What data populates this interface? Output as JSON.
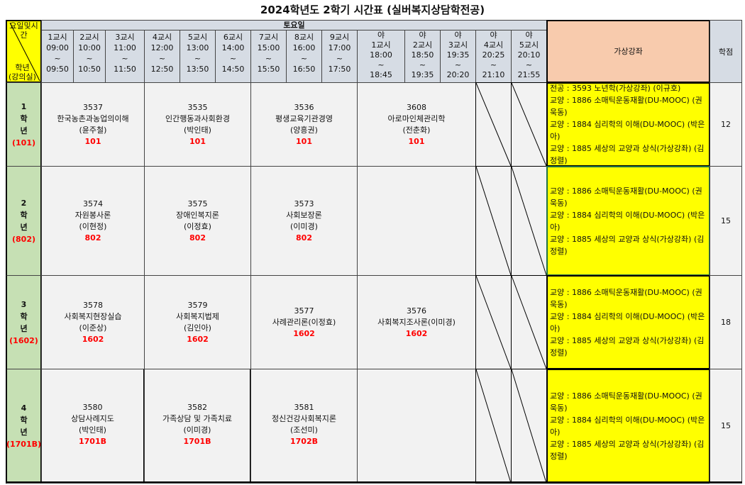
{
  "title": "2024학년도 2학기 시간표 (실버복지상담학전공)",
  "corner": {
    "top": "요일및시간",
    "bottom1": "학년",
    "bottom2": "(강의실)"
  },
  "day": "토요일",
  "periods": [
    {
      "name": "1교시",
      "start": "09:00",
      "end": "09:50"
    },
    {
      "name": "2교시",
      "start": "10:00",
      "end": "10:50"
    },
    {
      "name": "3교시",
      "start": "11:00",
      "end": "11:50"
    },
    {
      "name": "4교시",
      "start": "12:00",
      "end": "12:50"
    },
    {
      "name": "5교시",
      "start": "13:00",
      "end": "13:50"
    },
    {
      "name": "6교시",
      "start": "14:00",
      "end": "14:50"
    },
    {
      "name": "7교시",
      "start": "15:00",
      "end": "15:50"
    },
    {
      "name": "8교시",
      "start": "16:00",
      "end": "16:50"
    },
    {
      "name": "9교시",
      "start": "17:00",
      "end": "17:50"
    },
    {
      "prefix": "야",
      "name": "1교시",
      "start": "18:00",
      "end": "18:45"
    },
    {
      "prefix": "야",
      "name": "2교시",
      "start": "18:50",
      "end": "19:35"
    },
    {
      "prefix": "야",
      "name": "3교시",
      "start": "19:35",
      "end": "20:20"
    },
    {
      "prefix": "야",
      "name": "4교시",
      "start": "20:25",
      "end": "21:10"
    },
    {
      "prefix": "야",
      "name": "5교시",
      "start": "20:10",
      "end": "21:55"
    }
  ],
  "tilde": "~",
  "virtual_header": "가상강좌",
  "credit_header": "학점",
  "rows": [
    {
      "grade": "1",
      "hak": "학",
      "nyeon": "년",
      "room": "(101)",
      "credits": "12",
      "courses": [
        {
          "code": "3537",
          "name": "한국농촌과농업의이해",
          "prof": "(윤주철)",
          "room": "101"
        },
        {
          "code": "3535",
          "name": "인간행동과사회환경",
          "prof": "(박인태)",
          "room": "101"
        },
        {
          "code": "3536",
          "name": "평생교육기관경영",
          "prof": "(양흥권)",
          "room": "101"
        },
        {
          "code": "3608",
          "name": "아로마인체관리학",
          "prof": "(전춘화)",
          "room": "101"
        }
      ],
      "virtual": [
        "전공 : 3593 노년학(가상강좌) (이규호)",
        "교양 : 1886 소매틱운동재활(DU-MOOC) (권욱동)",
        "교양 : 1884 심리학의 이해(DU-MOOC) (박은아)",
        "교양 : 1885 세상의 교양과 상식(가상강좌) (김정렬)"
      ]
    },
    {
      "grade": "2",
      "hak": "학",
      "nyeon": "년",
      "room": "(802)",
      "credits": "15",
      "courses": [
        {
          "code": "3574",
          "name": "자원봉사론",
          "prof": "(이현정)",
          "room": "802"
        },
        {
          "code": "3575",
          "name": "장애인복지론",
          "prof": "(이정효)",
          "room": "802"
        },
        {
          "code": "3573",
          "name": "사회보장론",
          "prof": "(이미경)",
          "room": "802"
        },
        null
      ],
      "virtual": [
        "교양 : 1886 소매틱운동재활(DU-MOOC) (권욱동)",
        "교양 : 1884 심리학의 이해(DU-MOOC) (박은아)",
        "교양 : 1885 세상의 교양과 상식(가상강좌) (김정렬)"
      ]
    },
    {
      "grade": "3",
      "hak": "학",
      "nyeon": "년",
      "room": "(1602)",
      "credits": "18",
      "courses": [
        {
          "code": "3578",
          "name": "사회복지현장실습",
          "prof": "(이준상)",
          "room": "1602"
        },
        {
          "code": "3579",
          "name": "사회복지법제",
          "prof": "(김인아)",
          "room": "1602"
        },
        {
          "code": "3577",
          "name": "사례관리론(이정효)",
          "prof": "",
          "room": "1602"
        },
        {
          "code": "3576",
          "name": "사회복지조사론(이미경)",
          "prof": "",
          "room": "1602"
        }
      ],
      "virtual": [
        "교양 : 1886 소매틱운동재활(DU-MOOC) (권욱동)",
        "교양 : 1884 심리학의 이해(DU-MOOC) (박은아)",
        "교양 : 1885 세상의 교양과 상식(가상강좌) (김정렬)"
      ]
    },
    {
      "grade": "4",
      "hak": "학",
      "nyeon": "년",
      "room": "(1701B)",
      "credits": "15",
      "courses": [
        {
          "code": "3580",
          "name": "상담사례지도",
          "prof": "(박인태)",
          "room": "1701B"
        },
        {
          "code": "3582",
          "name": "가족상담 및 가족치료",
          "prof": "(이미경)",
          "room": "1701B"
        },
        {
          "code": "3581",
          "name": "정신건강사회복지론",
          "prof": "(조선미)",
          "room": "1702B"
        },
        null
      ],
      "virtual": [
        "교양 : 1886 소매틱운동재활(DU-MOOC) (권욱동)",
        "교양 : 1884 심리학의 이해(DU-MOOC) (박은아)",
        "교양 : 1885 세상의 교양과 상식(가상강좌) (김정렬)"
      ]
    }
  ],
  "colors": {
    "header_bg": "#d6dce4",
    "grade_bg": "#c6e0b4",
    "virtual_bg": "#ffff00",
    "virtual_header_bg": "#f8cbad",
    "corner_bg": "#ffff00",
    "room_text": "#ff0000"
  }
}
